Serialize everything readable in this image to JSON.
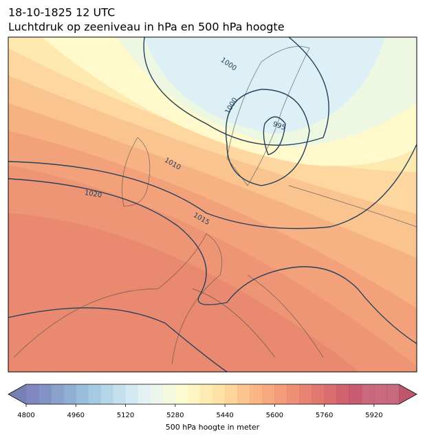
{
  "header": {
    "title": "18-10-1825 12 UTC",
    "subtitle": "Luchtdruk op zeeniveau in hPa en 500 hPa hoogte"
  },
  "isobars": [
    {
      "label": "1000"
    },
    {
      "label": "1000"
    },
    {
      "label": "995"
    },
    {
      "label": "1010"
    },
    {
      "label": "1020"
    },
    {
      "label": "1015"
    }
  ],
  "colorbar": {
    "label": "500 hPa hoogte in meter",
    "lim": [
      4800,
      6000
    ],
    "ticks": [
      4800,
      4960,
      5120,
      5280,
      5440,
      5600,
      5760,
      5920
    ]
  }
}
